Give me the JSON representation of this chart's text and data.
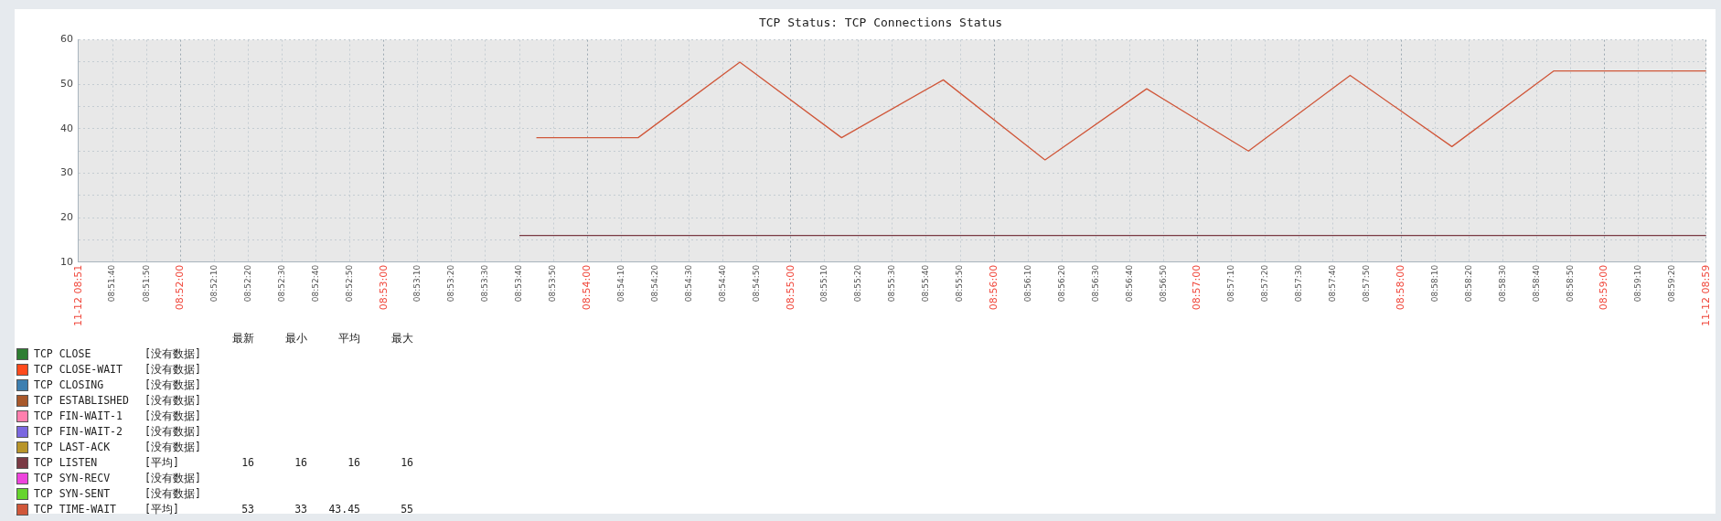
{
  "chart_data": {
    "type": "line",
    "title": "TCP Status: TCP Connections Status",
    "xlim": [
      8.858333,
      8.991667
    ],
    "xticks": [
      {
        "value": 8.858333,
        "label": "11-12 08:51"
      },
      {
        "value": 8.861111,
        "label": "08:51:40"
      },
      {
        "value": 8.863889,
        "label": "08:51:50"
      },
      {
        "value": 8.866667,
        "label": "08:52:00"
      },
      {
        "value": 8.869444,
        "label": "08:52:10"
      },
      {
        "value": 8.872222,
        "label": "08:52:20"
      },
      {
        "value": 8.875,
        "label": "08:52:30"
      },
      {
        "value": 8.877778,
        "label": "08:52:40"
      },
      {
        "value": 8.880556,
        "label": "08:52:50"
      },
      {
        "value": 8.883333,
        "label": "08:53:00"
      },
      {
        "value": 8.886111,
        "label": "08:53:10"
      },
      {
        "value": 8.888889,
        "label": "08:53:20"
      },
      {
        "value": 8.891667,
        "label": "08:53:30"
      },
      {
        "value": 8.894444,
        "label": "08:53:40"
      },
      {
        "value": 8.897222,
        "label": "08:53:50"
      },
      {
        "value": 8.9,
        "label": "08:54:00"
      },
      {
        "value": 8.902778,
        "label": "08:54:10"
      },
      {
        "value": 8.905556,
        "label": "08:54:20"
      },
      {
        "value": 8.908333,
        "label": "08:54:30"
      },
      {
        "value": 8.911111,
        "label": "08:54:40"
      },
      {
        "value": 8.913889,
        "label": "08:54:50"
      },
      {
        "value": 8.916667,
        "label": "08:55:00"
      },
      {
        "value": 8.919444,
        "label": "08:55:10"
      },
      {
        "value": 8.922222,
        "label": "08:55:20"
      },
      {
        "value": 8.925,
        "label": "08:55:30"
      },
      {
        "value": 8.927778,
        "label": "08:55:40"
      },
      {
        "value": 8.930556,
        "label": "08:55:50"
      },
      {
        "value": 8.933333,
        "label": "08:56:00"
      },
      {
        "value": 8.936111,
        "label": "08:56:10"
      },
      {
        "value": 8.938889,
        "label": "08:56:20"
      },
      {
        "value": 8.941667,
        "label": "08:56:30"
      },
      {
        "value": 8.944444,
        "label": "08:56:40"
      },
      {
        "value": 8.947222,
        "label": "08:56:50"
      },
      {
        "value": 8.95,
        "label": "08:57:00"
      },
      {
        "value": 8.952778,
        "label": "08:57:10"
      },
      {
        "value": 8.955556,
        "label": "08:57:20"
      },
      {
        "value": 8.958333,
        "label": "08:57:30"
      },
      {
        "value": 8.961111,
        "label": "08:57:40"
      },
      {
        "value": 8.963889,
        "label": "08:57:50"
      },
      {
        "value": 8.966667,
        "label": "08:58:00"
      },
      {
        "value": 8.969444,
        "label": "08:58:10"
      },
      {
        "value": 8.972222,
        "label": "08:58:20"
      },
      {
        "value": 8.975,
        "label": "08:58:30"
      },
      {
        "value": 8.977778,
        "label": "08:58:40"
      },
      {
        "value": 8.980556,
        "label": "08:58:50"
      },
      {
        "value": 8.983333,
        "label": "08:59:00"
      },
      {
        "value": 8.986111,
        "label": "08:59:10"
      },
      {
        "value": 8.988889,
        "label": "08:59:20"
      },
      {
        "value": 8.991667,
        "label": "11-12 08:59"
      }
    ],
    "ylim": [
      10,
      60
    ],
    "yticks": [
      10,
      {
        "value": 15,
        "label": null
      },
      20,
      {
        "value": 25,
        "label": null
      },
      30,
      {
        "value": 35,
        "label": null
      },
      40,
      {
        "value": 45,
        "label": null
      },
      50,
      {
        "value": 55,
        "label": null
      },
      60
    ],
    "grid": true,
    "legend": "bottom left",
    "series": [
      {
        "name": "TCP CLOSE",
        "color": "#2e7d32"
      },
      {
        "name": "TCP CLOSE-WAIT",
        "color": "#ff4a1c"
      },
      {
        "name": "TCP CLOSING",
        "color": "#3d7fb0"
      },
      {
        "name": "TCP ESTABLISHED",
        "color": "#a8582a"
      },
      {
        "name": "TCP FIN-WAIT-1",
        "color": "#ff7fae"
      },
      {
        "name": "TCP FIN-WAIT-2",
        "color": "#7b68e0"
      },
      {
        "name": "TCP LAST-ACK",
        "color": "#b8952a"
      },
      {
        "name": "TCP LISTEN",
        "color": "#7a3a44",
        "x": [
          8.894444,
          8.991667
        ],
        "values": [
          16,
          16
        ]
      },
      {
        "name": "TCP SYN-RECV",
        "color": "#ee44dd"
      },
      {
        "name": "TCP SYN-SENT",
        "color": "#66d42e"
      },
      {
        "name": "TCP TIME-WAIT",
        "color": "#d0573a",
        "x": [
          8.895833,
          8.904167,
          8.9125,
          8.920833,
          8.929167,
          8.9375,
          8.945833,
          8.954167,
          8.9625,
          8.970833,
          8.979167,
          8.991667
        ],
        "values": [
          38,
          38,
          55,
          38,
          51,
          33,
          49,
          35,
          52,
          36,
          53,
          53
        ]
      }
    ],
    "annotations": [
      "最新",
      "最小",
      "平均",
      "最大",
      "[没有数据]",
      "[没有数据]",
      "[没有数据]",
      "[没有数据]",
      "[没有数据]",
      "[没有数据]",
      "[没有数据]",
      "[平均]",
      "16",
      "16",
      "16",
      "16",
      "[没有数据]",
      "[没有数据]",
      "[平均]",
      "53",
      "33",
      "43.45",
      "55"
    ]
  }
}
